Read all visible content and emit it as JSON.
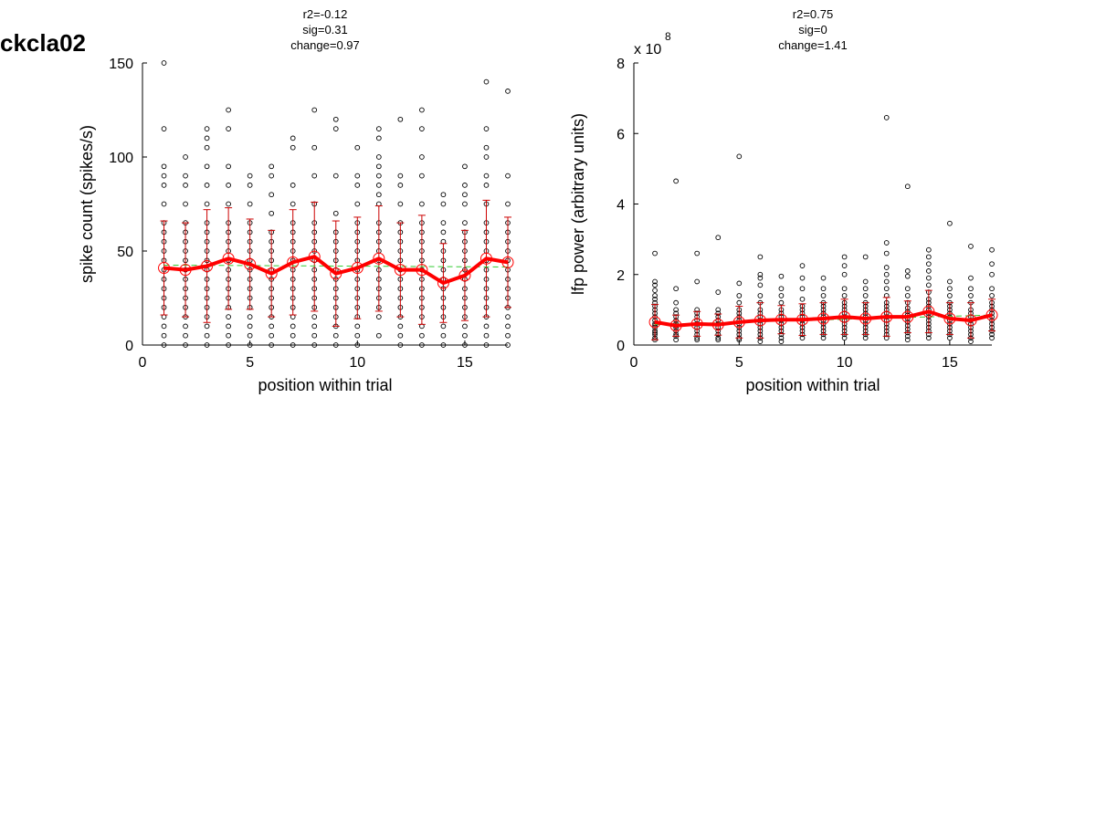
{
  "figure_title": "ckcla02",
  "chart_data": [
    {
      "type": "scatter",
      "stats": [
        "r2=-0.12",
        "sig=0.31",
        "change=0.97"
      ],
      "xlabel": "position within trial",
      "ylabel": "spike count (spikes/s)",
      "xlim": [
        0,
        17
      ],
      "ylim": [
        0,
        150
      ],
      "xticks": [
        0,
        5,
        10,
        15
      ],
      "yticks": [
        0,
        50,
        100,
        150
      ],
      "exponent_label": "",
      "grid": false,
      "colors": {
        "points": "#000000",
        "mean": "#ff0000",
        "errorbar": "#cc0000",
        "fit": "#33cc33"
      },
      "scatter": [
        {
          "x": 1,
          "y": [
            0,
            5,
            10,
            15,
            20,
            25,
            30,
            35,
            40,
            45,
            50,
            55,
            60,
            65,
            75,
            85,
            90,
            95,
            115,
            150
          ]
        },
        {
          "x": 2,
          "y": [
            0,
            5,
            10,
            15,
            20,
            25,
            30,
            35,
            40,
            45,
            50,
            55,
            60,
            65,
            75,
            85,
            90,
            100
          ]
        },
        {
          "x": 3,
          "y": [
            0,
            5,
            10,
            15,
            20,
            25,
            30,
            35,
            40,
            45,
            50,
            55,
            60,
            65,
            75,
            85,
            95,
            105,
            110,
            115
          ]
        },
        {
          "x": 4,
          "y": [
            0,
            5,
            10,
            15,
            20,
            25,
            30,
            35,
            40,
            45,
            50,
            55,
            60,
            65,
            75,
            85,
            95,
            115,
            125
          ]
        },
        {
          "x": 5,
          "y": [
            0,
            5,
            10,
            15,
            20,
            25,
            30,
            35,
            40,
            45,
            50,
            55,
            60,
            65,
            75,
            85,
            90
          ]
        },
        {
          "x": 6,
          "y": [
            0,
            5,
            10,
            15,
            20,
            25,
            30,
            35,
            40,
            45,
            50,
            55,
            60,
            70,
            80,
            90,
            95
          ]
        },
        {
          "x": 7,
          "y": [
            0,
            5,
            10,
            15,
            20,
            25,
            30,
            35,
            40,
            45,
            50,
            55,
            60,
            65,
            75,
            85,
            105,
            110
          ]
        },
        {
          "x": 8,
          "y": [
            0,
            5,
            10,
            15,
            20,
            25,
            30,
            35,
            40,
            45,
            50,
            55,
            60,
            65,
            75,
            90,
            105,
            125
          ]
        },
        {
          "x": 9,
          "y": [
            0,
            5,
            10,
            15,
            20,
            25,
            30,
            35,
            40,
            45,
            50,
            55,
            60,
            70,
            90,
            115,
            120
          ]
        },
        {
          "x": 10,
          "y": [
            0,
            5,
            10,
            15,
            20,
            25,
            30,
            35,
            40,
            45,
            50,
            55,
            60,
            65,
            75,
            85,
            90,
            105
          ]
        },
        {
          "x": 11,
          "y": [
            5,
            15,
            20,
            25,
            30,
            35,
            40,
            45,
            50,
            55,
            60,
            65,
            75,
            80,
            85,
            90,
            95,
            100,
            110,
            115
          ]
        },
        {
          "x": 12,
          "y": [
            0,
            5,
            10,
            15,
            20,
            25,
            30,
            35,
            40,
            45,
            50,
            55,
            60,
            65,
            75,
            85,
            90,
            120
          ]
        },
        {
          "x": 13,
          "y": [
            0,
            5,
            10,
            15,
            20,
            25,
            30,
            35,
            40,
            45,
            50,
            55,
            60,
            65,
            75,
            90,
            100,
            115,
            125
          ]
        },
        {
          "x": 14,
          "y": [
            0,
            5,
            10,
            15,
            20,
            25,
            30,
            35,
            40,
            45,
            50,
            55,
            60,
            65,
            75,
            80
          ]
        },
        {
          "x": 15,
          "y": [
            0,
            5,
            10,
            15,
            20,
            25,
            30,
            35,
            40,
            45,
            50,
            55,
            60,
            65,
            75,
            80,
            85,
            95
          ]
        },
        {
          "x": 16,
          "y": [
            0,
            5,
            10,
            15,
            20,
            25,
            30,
            35,
            40,
            45,
            50,
            55,
            60,
            65,
            75,
            85,
            90,
            100,
            105,
            115,
            140
          ]
        },
        {
          "x": 17,
          "y": [
            0,
            5,
            10,
            15,
            20,
            25,
            30,
            35,
            40,
            45,
            50,
            55,
            60,
            65,
            75,
            90,
            135
          ]
        }
      ],
      "mean": [
        41,
        40,
        42,
        46,
        43,
        38,
        44,
        47,
        38,
        41,
        46,
        40,
        40,
        33,
        37,
        46,
        44
      ],
      "err": [
        25,
        25,
        30,
        27,
        24,
        23,
        28,
        29,
        28,
        27,
        28,
        25,
        29,
        21,
        24,
        31,
        24
      ],
      "fit": {
        "x": [
          1,
          17
        ],
        "y": [
          42.5,
          41.5
        ]
      }
    },
    {
      "type": "scatter",
      "stats": [
        "r2=0.75",
        "sig=0",
        "change=1.41"
      ],
      "xlabel": "position within trial",
      "ylabel": "lfp power (arbitrary units)",
      "xlim": [
        0,
        17
      ],
      "ylim": [
        0,
        8
      ],
      "xticks": [
        0,
        5,
        10,
        15
      ],
      "yticks": [
        0,
        2,
        4,
        6,
        8
      ],
      "exponent_label": "x 10",
      "exponent_power": "8",
      "grid": false,
      "colors": {
        "points": "#000000",
        "mean": "#ff0000",
        "errorbar": "#cc0000",
        "fit": "#33cc33"
      },
      "scatter": [
        {
          "x": 1,
          "y": [
            0.15,
            0.2,
            0.3,
            0.35,
            0.4,
            0.5,
            0.55,
            0.6,
            0.7,
            0.8,
            0.9,
            1.0,
            1.1,
            1.2,
            1.3,
            1.4,
            1.55,
            1.7,
            1.8,
            2.6
          ]
        },
        {
          "x": 2,
          "y": [
            0.15,
            0.25,
            0.3,
            0.4,
            0.5,
            0.55,
            0.6,
            0.7,
            0.8,
            0.9,
            1.0,
            1.2,
            1.6,
            4.65
          ]
        },
        {
          "x": 3,
          "y": [
            0.15,
            0.2,
            0.3,
            0.4,
            0.5,
            0.6,
            0.7,
            0.8,
            0.9,
            1.0,
            1.8,
            2.6
          ]
        },
        {
          "x": 4,
          "y": [
            0.15,
            0.2,
            0.3,
            0.4,
            0.5,
            0.6,
            0.7,
            0.8,
            0.9,
            1.0,
            1.5,
            3.05
          ]
        },
        {
          "x": 5,
          "y": [
            0.15,
            0.2,
            0.3,
            0.4,
            0.5,
            0.6,
            0.7,
            0.8,
            0.9,
            1.0,
            1.2,
            1.4,
            1.75,
            5.35
          ]
        },
        {
          "x": 6,
          "y": [
            0.1,
            0.2,
            0.3,
            0.4,
            0.5,
            0.6,
            0.7,
            0.8,
            0.9,
            1.0,
            1.2,
            1.4,
            1.7,
            1.9,
            2.0,
            2.5
          ]
        },
        {
          "x": 7,
          "y": [
            0.1,
            0.2,
            0.3,
            0.4,
            0.5,
            0.6,
            0.7,
            0.8,
            0.9,
            1.0,
            1.2,
            1.4,
            1.6,
            1.95
          ]
        },
        {
          "x": 8,
          "y": [
            0.2,
            0.3,
            0.4,
            0.5,
            0.6,
            0.7,
            0.8,
            0.9,
            1.0,
            1.1,
            1.3,
            1.6,
            1.9,
            2.25
          ]
        },
        {
          "x": 9,
          "y": [
            0.2,
            0.3,
            0.4,
            0.5,
            0.6,
            0.7,
            0.8,
            0.9,
            1.0,
            1.1,
            1.2,
            1.4,
            1.6,
            1.9
          ]
        },
        {
          "x": 10,
          "y": [
            0.2,
            0.3,
            0.4,
            0.5,
            0.6,
            0.7,
            0.8,
            0.9,
            1.0,
            1.1,
            1.2,
            1.4,
            1.6,
            2.0,
            2.25,
            2.5
          ]
        },
        {
          "x": 11,
          "y": [
            0.2,
            0.3,
            0.4,
            0.5,
            0.6,
            0.7,
            0.8,
            0.9,
            1.0,
            1.1,
            1.2,
            1.4,
            1.6,
            1.8,
            2.5
          ]
        },
        {
          "x": 12,
          "y": [
            0.2,
            0.3,
            0.4,
            0.5,
            0.6,
            0.7,
            0.8,
            0.9,
            1.0,
            1.1,
            1.2,
            1.4,
            1.6,
            1.8,
            2.0,
            2.2,
            2.6,
            2.9,
            6.45
          ]
        },
        {
          "x": 13,
          "y": [
            0.15,
            0.25,
            0.35,
            0.45,
            0.55,
            0.65,
            0.75,
            0.85,
            0.95,
            1.05,
            1.2,
            1.4,
            1.6,
            1.95,
            2.1,
            4.5
          ]
        },
        {
          "x": 14,
          "y": [
            0.2,
            0.3,
            0.4,
            0.5,
            0.6,
            0.7,
            0.8,
            0.9,
            1.0,
            1.1,
            1.2,
            1.3,
            1.5,
            1.7,
            1.9,
            2.1,
            2.3,
            2.5,
            2.7
          ]
        },
        {
          "x": 15,
          "y": [
            0.2,
            0.3,
            0.4,
            0.5,
            0.6,
            0.7,
            0.8,
            0.9,
            1.0,
            1.1,
            1.2,
            1.4,
            1.6,
            1.8,
            3.45
          ]
        },
        {
          "x": 16,
          "y": [
            0.1,
            0.2,
            0.3,
            0.4,
            0.5,
            0.6,
            0.7,
            0.8,
            0.9,
            1.0,
            1.2,
            1.4,
            1.6,
            1.9,
            2.8
          ]
        },
        {
          "x": 17,
          "y": [
            0.2,
            0.3,
            0.4,
            0.5,
            0.6,
            0.7,
            0.8,
            0.9,
            1.0,
            1.1,
            1.2,
            1.4,
            1.6,
            2.0,
            2.3,
            2.7
          ]
        }
      ],
      "mean": [
        0.65,
        0.55,
        0.6,
        0.58,
        0.65,
        0.7,
        0.72,
        0.72,
        0.75,
        0.8,
        0.75,
        0.8,
        0.8,
        0.95,
        0.75,
        0.7,
        0.85
      ],
      "err": [
        0.5,
        0.3,
        0.35,
        0.3,
        0.45,
        0.5,
        0.4,
        0.45,
        0.45,
        0.5,
        0.45,
        0.55,
        0.45,
        0.6,
        0.45,
        0.5,
        0.45
      ],
      "fit": {
        "x": [
          1,
          17
        ],
        "y": [
          0.58,
          0.85
        ]
      }
    }
  ]
}
